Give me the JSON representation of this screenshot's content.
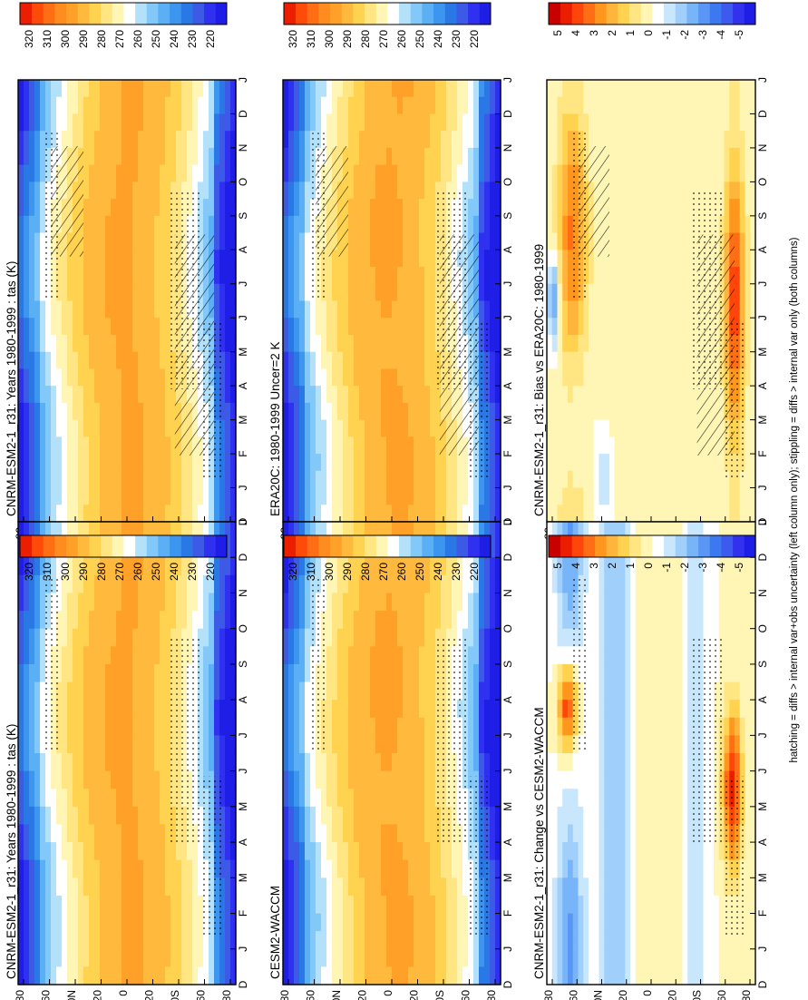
{
  "footer_note": "hatching = diffs > internal var+obs uncertainty (left column only); stippling = diffs > internal var only (both columns)",
  "colors": {
    "abs_scale": [
      "#1e1ee6",
      "#3030f0",
      "#3c5ae6",
      "#2a78e6",
      "#3c96f0",
      "#5aaff5",
      "#82c8f8",
      "#b4e1fa",
      "#ffffff",
      "#fff5b4",
      "#ffe682",
      "#ffd250",
      "#ffb93c",
      "#ffa028",
      "#ff8c1e",
      "#ff6e14",
      "#ff4b0a",
      "#eb1e00"
    ],
    "diff_scale": [
      "#1e1ee6",
      "#3232ee",
      "#3c5aee",
      "#3c78f0",
      "#5a96f5",
      "#78b4f8",
      "#9fcffa",
      "#c8e6fc",
      "#ffffff",
      "#fff5b4",
      "#ffe682",
      "#ffd250",
      "#ffb43c",
      "#ff961e",
      "#ff6e14",
      "#ff460a",
      "#eb1e00",
      "#c80000"
    ]
  },
  "chart_data": [
    {
      "type": "heatmap",
      "title": "CNRM-ESM2-1_r31: Years 1980-1999 : tas (K)",
      "xlabel": "",
      "ylabel": "",
      "x_ticks": [
        "D",
        "J",
        "F",
        "M",
        "A",
        "M",
        "J",
        "J",
        "A",
        "S",
        "O",
        "N",
        "D",
        "J"
      ],
      "y_ticks": [
        "80",
        "60",
        "40N",
        "20",
        "0",
        "20",
        "40S",
        "60",
        "80"
      ],
      "colorbar_ticks": [
        "320",
        "310",
        "300",
        "290",
        "280",
        "270",
        "260",
        "250",
        "240",
        "230",
        "220"
      ],
      "overlays": [
        "hatching",
        "stippling"
      ]
    },
    {
      "type": "heatmap",
      "title": "ERA20C: 1980-1999 Uncer=2 K",
      "xlabel": "",
      "ylabel": "",
      "x_ticks": [
        "D",
        "J",
        "F",
        "M",
        "A",
        "M",
        "J",
        "J",
        "A",
        "S",
        "O",
        "N",
        "D",
        "J"
      ],
      "y_ticks": [
        "80",
        "60",
        "40N",
        "20",
        "0",
        "20",
        "40S",
        "60",
        "80"
      ],
      "colorbar_ticks": [
        "320",
        "310",
        "300",
        "290",
        "280",
        "270",
        "260",
        "250",
        "240",
        "230",
        "220"
      ],
      "overlays": [
        "hatching",
        "stippling"
      ]
    },
    {
      "type": "heatmap",
      "title": "CNRM-ESM2-1_r31: Bias vs ERA20C: 1980-1999",
      "xlabel": "",
      "ylabel": "",
      "x_ticks": [
        "D",
        "J",
        "F",
        "M",
        "A",
        "M",
        "J",
        "J",
        "A",
        "S",
        "O",
        "N",
        "D",
        "J"
      ],
      "y_ticks": [
        "80",
        "60",
        "40N",
        "20",
        "0",
        "20",
        "40S",
        "60",
        "80"
      ],
      "colorbar_ticks": [
        "5",
        "4",
        "3",
        "2",
        "1",
        "0",
        "-1",
        "-2",
        "-3",
        "-4",
        "-5"
      ],
      "overlays": [
        "hatching",
        "stippling"
      ]
    },
    {
      "type": "heatmap",
      "title": "CNRM-ESM2-1_r31: Years 1980-1999 : tas (K)",
      "xlabel": "",
      "ylabel": "",
      "x_ticks": [
        "D",
        "J",
        "F",
        "M",
        "A",
        "M",
        "J",
        "J",
        "A",
        "S",
        "O",
        "N",
        "D",
        "J"
      ],
      "y_ticks": [
        "80",
        "60",
        "40N",
        "20",
        "0",
        "20",
        "40S",
        "60",
        "80"
      ],
      "colorbar_ticks": [
        "320",
        "310",
        "300",
        "290",
        "280",
        "270",
        "260",
        "250",
        "240",
        "230",
        "220"
      ],
      "overlays": [
        "stippling"
      ]
    },
    {
      "type": "heatmap",
      "title": "CESM2-WACCM",
      "xlabel": "",
      "ylabel": "",
      "x_ticks": [
        "D",
        "J",
        "F",
        "M",
        "A",
        "M",
        "J",
        "J",
        "A",
        "S",
        "O",
        "N",
        "D",
        "J"
      ],
      "y_ticks": [
        "80",
        "60",
        "40N",
        "20",
        "0",
        "20",
        "40S",
        "60",
        "80"
      ],
      "colorbar_ticks": [
        "320",
        "310",
        "300",
        "290",
        "280",
        "270",
        "260",
        "250",
        "240",
        "230",
        "220"
      ],
      "overlays": [
        "stippling"
      ]
    },
    {
      "type": "heatmap",
      "title": "CNRM-ESM2-1_r31: Change vs CESM2-WACCM",
      "xlabel": "",
      "ylabel": "",
      "x_ticks": [
        "D",
        "J",
        "F",
        "M",
        "A",
        "M",
        "J",
        "J",
        "A",
        "S",
        "O",
        "N",
        "D",
        "J"
      ],
      "y_ticks": [
        "80",
        "60",
        "40N",
        "20",
        "0",
        "20",
        "40S",
        "60",
        "80"
      ],
      "colorbar_ticks": [
        "5",
        "4",
        "3",
        "2",
        "1",
        "0",
        "-1",
        "-2",
        "-3",
        "-4",
        "-5"
      ],
      "overlays": [
        "stippling"
      ]
    }
  ]
}
